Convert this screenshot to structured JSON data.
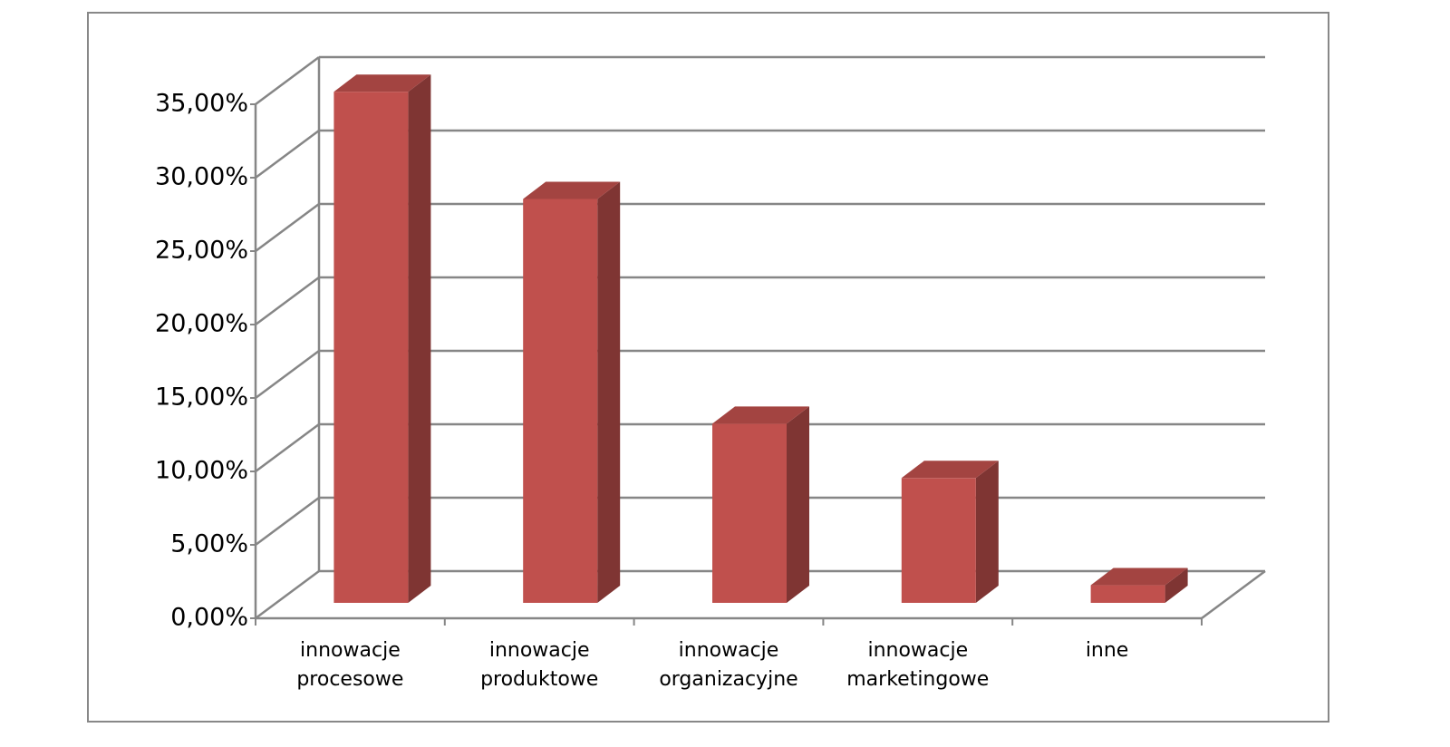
{
  "chart_data": {
    "type": "bar3d",
    "categories": [
      "innowacje procesowe",
      "innowacje produktowe",
      "innowacje organizacyjne",
      "innowacje marketingowe",
      "inne"
    ],
    "values": [
      34.8,
      27.5,
      12.2,
      8.5,
      1.2
    ],
    "color": "#c0504d",
    "ylim": [
      0,
      35
    ],
    "yticks": [
      {
        "value": 0,
        "label": "0,00%"
      },
      {
        "value": 5,
        "label": "5,00%"
      },
      {
        "value": 10,
        "label": "10,00%"
      },
      {
        "value": 15,
        "label": "15,00%"
      },
      {
        "value": 20,
        "label": "20,00%"
      },
      {
        "value": 25,
        "label": "25,00%"
      },
      {
        "value": 30,
        "label": "30,00%"
      },
      {
        "value": 35,
        "label": "35,00%"
      }
    ],
    "grid": true
  }
}
